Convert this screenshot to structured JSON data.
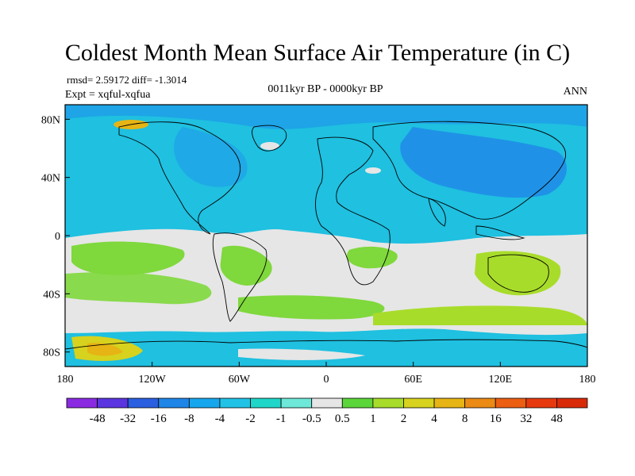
{
  "title": "Coldest Month Mean Surface Air Temperature (in C)",
  "stats": "rmsd= 2.59172  diff= -1.3014",
  "experiment": "Expt = xqful-xqfua",
  "period": "0011kyr BP - 0000kyr BP",
  "season": "ANN",
  "lat_ticks": [
    "80N",
    "40N",
    "0",
    "40S",
    "80S"
  ],
  "lon_ticks": [
    "180",
    "120W",
    "60W",
    "0",
    "60E",
    "120E",
    "180"
  ],
  "colorbar": {
    "labels": [
      "-48",
      "-32",
      "-16",
      "-8",
      "-4",
      "-2",
      "-1",
      "-0.5",
      "0.5",
      "1",
      "2",
      "4",
      "8",
      "16",
      "32",
      "48"
    ],
    "colors": [
      "#8a2be2",
      "#5a35e0",
      "#2a5fe0",
      "#1f86e8",
      "#16a6ee",
      "#20c2e6",
      "#1fd6c8",
      "#6ee8d8",
      "#e6e6e6",
      "#5bd63a",
      "#a8dc2a",
      "#d6d21e",
      "#e6b414",
      "#eb8a14",
      "#ec5e12",
      "#e63a0e",
      "#d92a08"
    ]
  },
  "colors": {
    "land_ocean_fill_cool": "#1fc0e0",
    "neutral": "#e6e6e6",
    "warm_light": "#7fd83c",
    "warm_mid": "#d6d21e",
    "cool_deep": "#1f86e8"
  }
}
